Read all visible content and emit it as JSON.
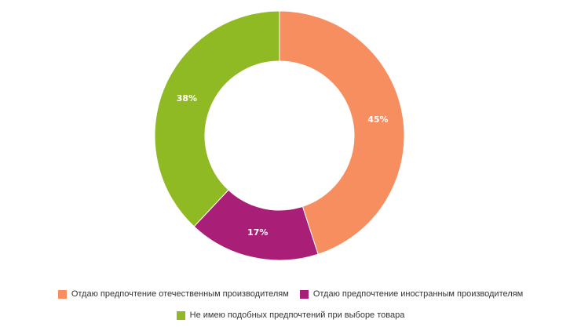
{
  "chart_data": {
    "type": "pie",
    "donut": true,
    "categories": [
      "Отдаю предпочтение отечественным производителям",
      "Отдаю предпочтение иностранным производителям",
      "Не имею подобных предпочтений при выборе товара"
    ],
    "values": [
      45,
      17,
      38
    ],
    "value_labels": [
      "45%",
      "17%",
      "38%"
    ],
    "colors": [
      "#f68e5f",
      "#a91f78",
      "#8fba24"
    ],
    "legend_position": "bottom"
  }
}
